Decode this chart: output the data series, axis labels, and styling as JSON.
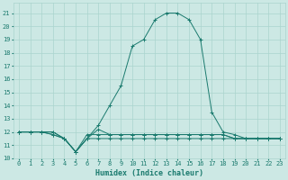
{
  "xlabel": "Humidex (Indice chaleur)",
  "ylabel": "",
  "bg_color": "#cce8e4",
  "line_color": "#1a7a6e",
  "grid_color": "#aad4ce",
  "xlim": [
    -0.5,
    23.5
  ],
  "ylim": [
    10,
    21.8
  ],
  "yticks": [
    10,
    11,
    12,
    13,
    14,
    15,
    16,
    17,
    18,
    19,
    20,
    21
  ],
  "xticks": [
    0,
    1,
    2,
    3,
    4,
    5,
    6,
    7,
    8,
    9,
    10,
    11,
    12,
    13,
    14,
    15,
    16,
    17,
    18,
    19,
    20,
    21,
    22,
    23
  ],
  "series": [
    [
      12,
      12,
      12,
      12,
      11.5,
      10.5,
      11.5,
      12.5,
      14,
      15.5,
      18.5,
      19,
      20.5,
      21,
      21,
      20.5,
      19,
      13.5,
      12,
      11.8,
      11.5,
      11.5,
      11.5,
      11.5
    ],
    [
      12,
      12,
      12,
      12,
      11.5,
      10.5,
      11.5,
      12.2,
      11.8,
      11.8,
      11.8,
      11.8,
      11.8,
      11.8,
      11.8,
      11.8,
      11.8,
      11.8,
      11.8,
      11.5,
      11.5,
      11.5,
      11.5,
      11.5
    ],
    [
      12,
      12,
      12,
      11.8,
      11.5,
      10.5,
      11.8,
      11.8,
      11.8,
      11.8,
      11.8,
      11.8,
      11.8,
      11.8,
      11.8,
      11.8,
      11.8,
      11.8,
      11.8,
      11.5,
      11.5,
      11.5,
      11.5,
      11.5
    ],
    [
      12,
      12,
      12,
      11.8,
      11.5,
      10.5,
      11.5,
      11.5,
      11.5,
      11.5,
      11.5,
      11.5,
      11.5,
      11.5,
      11.5,
      11.5,
      11.5,
      11.5,
      11.5,
      11.5,
      11.5,
      11.5,
      11.5,
      11.5
    ]
  ],
  "xlabel_fontsize": 6,
  "tick_fontsize": 5,
  "figsize": [
    3.2,
    2.0
  ],
  "dpi": 100
}
